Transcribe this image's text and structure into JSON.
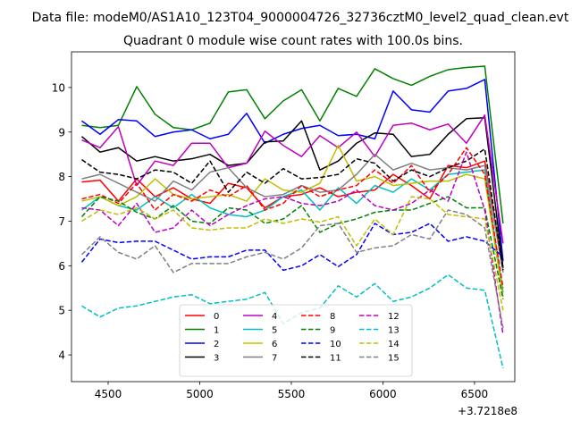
{
  "suptitle": "Data file: modeM0/AS1A10_123T04_9000004726_32736cztM0_level2_quad_clean.evt",
  "chart_data": {
    "type": "line",
    "title": "Quadrant 0 module wise count rates with 100.0s bins.",
    "xlabel": "",
    "ylabel": "",
    "x_offset_label": "+3.7218e8",
    "xlim": [
      4300,
      6720
    ],
    "ylim": [
      3.4,
      10.8
    ],
    "xticks": [
      4500,
      5000,
      5500,
      6000,
      6500
    ],
    "yticks": [
      4,
      5,
      6,
      7,
      8,
      9,
      10
    ],
    "grid": false,
    "legend": {
      "placement": "lower center",
      "ncol": 4
    },
    "x": [
      4356,
      4456,
      4556,
      4656,
      4756,
      4856,
      4956,
      5056,
      5156,
      5256,
      5356,
      5456,
      5556,
      5656,
      5756,
      5856,
      5956,
      6056,
      6156,
      6256,
      6356,
      6456,
      6556,
      6656
    ],
    "series": [
      {
        "name": "0",
        "color": "#ff0000",
        "dash": "solid",
        "values": [
          7.88,
          7.92,
          7.45,
          7.95,
          7.55,
          7.75,
          7.5,
          7.4,
          7.85,
          7.75,
          7.3,
          7.55,
          7.6,
          7.75,
          7.55,
          7.65,
          7.7,
          8.05,
          7.8,
          7.5,
          8.25,
          8.2,
          8.35,
          5.95
        ]
      },
      {
        "name": "1",
        "color": "#008000",
        "dash": "solid",
        "values": [
          9.15,
          9.1,
          9.15,
          10.02,
          9.4,
          9.1,
          9.05,
          9.2,
          9.9,
          9.95,
          9.3,
          9.7,
          9.95,
          9.25,
          9.98,
          9.8,
          10.42,
          10.2,
          10.05,
          10.25,
          10.4,
          10.45,
          10.48,
          6.95
        ]
      },
      {
        "name": "2",
        "color": "#0000ff",
        "dash": "solid",
        "values": [
          9.25,
          8.95,
          9.28,
          9.25,
          8.9,
          9.0,
          9.05,
          8.85,
          8.95,
          9.42,
          8.75,
          8.95,
          9.08,
          9.15,
          8.92,
          8.95,
          8.85,
          9.92,
          9.5,
          9.45,
          9.92,
          9.98,
          10.18,
          6.1
        ]
      },
      {
        "name": "3",
        "color": "#000000",
        "dash": "solid",
        "values": [
          8.9,
          8.55,
          8.65,
          8.35,
          8.45,
          8.35,
          8.4,
          8.5,
          8.25,
          8.3,
          8.78,
          8.8,
          9.25,
          8.15,
          8.35,
          8.75,
          8.98,
          8.95,
          8.45,
          8.5,
          8.95,
          9.3,
          9.32,
          5.95
        ]
      },
      {
        "name": "4",
        "color": "#bf00bf",
        "dash": "solid",
        "values": [
          8.82,
          8.65,
          9.12,
          7.8,
          8.35,
          8.25,
          8.75,
          8.75,
          8.2,
          8.3,
          9.02,
          8.7,
          8.45,
          8.92,
          8.65,
          9.0,
          8.45,
          9.15,
          9.2,
          9.05,
          9.18,
          8.75,
          9.38,
          6.5
        ]
      },
      {
        "name": "5",
        "color": "#00bfbf",
        "dash": "solid",
        "values": [
          7.25,
          7.55,
          7.35,
          7.25,
          7.55,
          7.3,
          7.6,
          7.3,
          7.15,
          7.1,
          7.25,
          7.55,
          7.7,
          7.25,
          7.75,
          7.4,
          7.8,
          7.65,
          7.95,
          7.7,
          8.05,
          8.1,
          8.15,
          5.4
        ]
      },
      {
        "name": "6",
        "color": "#bfbf00",
        "dash": "solid",
        "values": [
          7.45,
          7.55,
          7.35,
          7.55,
          7.95,
          7.6,
          7.5,
          7.55,
          7.6,
          7.45,
          7.95,
          7.7,
          7.65,
          7.85,
          8.7,
          7.9,
          8.0,
          7.8,
          7.85,
          7.9,
          7.9,
          8.05,
          7.95,
          5.3
        ]
      },
      {
        "name": "7",
        "color": "#808080",
        "dash": "solid",
        "values": [
          7.95,
          8.05,
          7.85,
          7.65,
          7.45,
          7.9,
          7.7,
          8.1,
          8.2,
          7.75,
          7.55,
          7.6,
          7.8,
          7.65,
          7.7,
          8.05,
          8.5,
          8.15,
          8.3,
          8.15,
          8.2,
          8.15,
          8.25,
          5.85
        ]
      },
      {
        "name": "8",
        "color": "#ff0000",
        "dash": "dashed",
        "values": [
          7.5,
          7.6,
          7.4,
          7.85,
          7.25,
          7.6,
          7.45,
          7.7,
          7.55,
          7.8,
          7.25,
          7.4,
          7.8,
          7.55,
          7.7,
          7.8,
          8.15,
          7.85,
          8.25,
          7.65,
          8.05,
          8.65,
          8.05,
          5.5
        ]
      },
      {
        "name": "9",
        "color": "#008000",
        "dash": "dashed",
        "values": [
          7.1,
          7.55,
          7.45,
          7.2,
          7.05,
          7.35,
          7.0,
          6.95,
          7.3,
          7.25,
          6.95,
          7.05,
          7.35,
          6.75,
          6.95,
          7.05,
          7.2,
          7.25,
          7.25,
          7.4,
          7.55,
          7.3,
          7.3,
          5.25
        ]
      },
      {
        "name": "10",
        "color": "#0000ff",
        "dash": "dashed",
        "values": [
          6.08,
          6.6,
          6.52,
          6.55,
          6.55,
          6.35,
          6.15,
          6.2,
          6.2,
          6.35,
          6.35,
          5.9,
          6.0,
          6.25,
          5.98,
          6.25,
          6.95,
          6.7,
          6.75,
          6.95,
          6.55,
          6.65,
          6.55,
          6.2
        ]
      },
      {
        "name": "11",
        "color": "#000000",
        "dash": "dashed",
        "values": [
          8.38,
          8.1,
          8.05,
          7.95,
          8.15,
          8.1,
          7.85,
          8.35,
          7.65,
          8.1,
          7.85,
          8.18,
          7.95,
          7.98,
          8.05,
          8.4,
          8.3,
          7.9,
          8.15,
          8.0,
          8.2,
          8.35,
          8.62,
          5.9
        ]
      },
      {
        "name": "12",
        "color": "#bf00bf",
        "dash": "dashed",
        "values": [
          7.3,
          7.25,
          6.9,
          7.4,
          6.75,
          6.85,
          7.25,
          6.9,
          7.15,
          7.35,
          7.5,
          7.55,
          7.4,
          7.35,
          7.45,
          7.7,
          7.35,
          7.25,
          7.4,
          7.7,
          7.45,
          8.55,
          7.25,
          4.45
        ]
      },
      {
        "name": "13",
        "color": "#00bfbf",
        "dash": "dashed",
        "values": [
          5.1,
          4.85,
          5.05,
          5.1,
          5.2,
          5.3,
          5.35,
          5.15,
          5.2,
          5.25,
          5.4,
          4.7,
          4.95,
          5.05,
          5.55,
          5.3,
          5.6,
          5.2,
          5.3,
          5.5,
          5.8,
          5.5,
          5.45,
          3.7
        ]
      },
      {
        "name": "14",
        "color": "#bfbf00",
        "dash": "dashed",
        "values": [
          7.0,
          7.25,
          7.15,
          7.3,
          7.05,
          7.25,
          6.85,
          6.8,
          6.85,
          6.85,
          7.05,
          6.95,
          7.05,
          6.98,
          7.1,
          6.45,
          7.05,
          6.7,
          7.55,
          7.5,
          7.15,
          7.1,
          7.05,
          5.0
        ]
      },
      {
        "name": "15",
        "color": "#808080",
        "dash": "dashed",
        "values": [
          6.25,
          6.65,
          6.3,
          6.15,
          6.45,
          5.85,
          6.05,
          6.05,
          6.05,
          6.2,
          6.3,
          6.15,
          6.4,
          6.9,
          6.95,
          6.3,
          6.4,
          6.45,
          6.7,
          6.6,
          7.25,
          7.15,
          6.85,
          4.6
        ]
      }
    ]
  }
}
